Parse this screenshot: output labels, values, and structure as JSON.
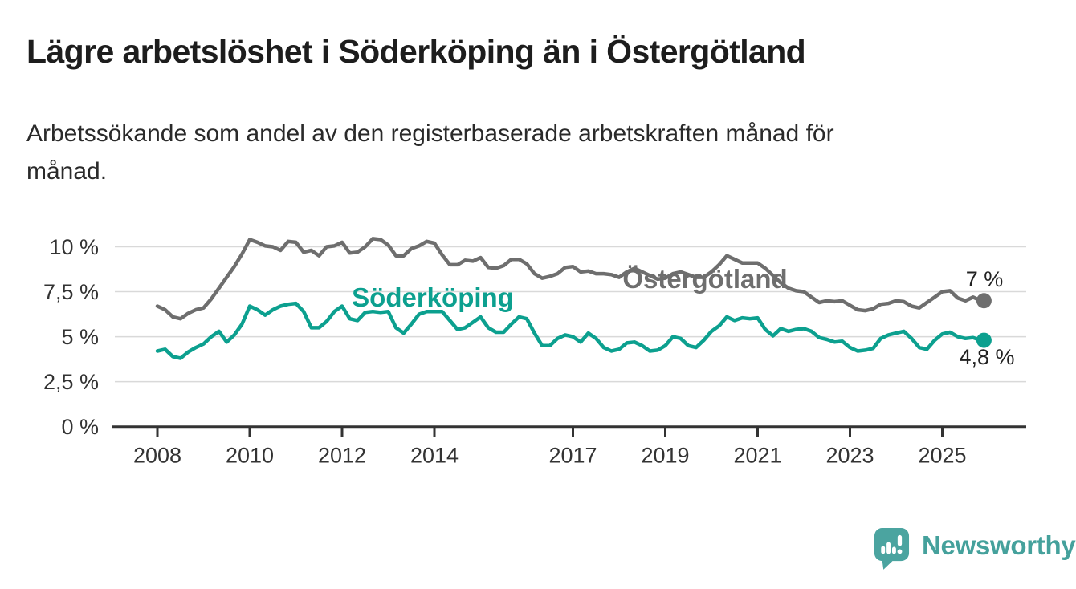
{
  "header": {
    "title": "Lägre arbetslöshet i Söderköping än i Östergötland",
    "subtitle": "Arbetssökande som andel av den registerbaserade arbetskraften månad för månad.",
    "subtitle_line1": "Arbetssökande som andel av den registerbaserade arbetskraften månad för",
    "subtitle_line2": "månad."
  },
  "chart_data": {
    "type": "line",
    "title": "",
    "xlabel": "",
    "ylabel": "",
    "grid": true,
    "legend_position": "inline-labels-on-lines",
    "x_unit": "year-month",
    "y_unit": "percent",
    "x_start": 2008.0,
    "x_step_years": 0.1666667,
    "x_end": 2025.83,
    "ylim": [
      0,
      11.7
    ],
    "xlim": [
      2007.0,
      2026.8
    ],
    "y_ticks": [
      {
        "value": 0,
        "label": "0 %"
      },
      {
        "value": 2.5,
        "label": "2,5 %"
      },
      {
        "value": 5,
        "label": "5 %"
      },
      {
        "value": 7.5,
        "label": "7,5 %"
      },
      {
        "value": 10,
        "label": "10 %"
      }
    ],
    "x_ticks": [
      {
        "value": 2008,
        "label": "2008"
      },
      {
        "value": 2010,
        "label": "2010"
      },
      {
        "value": 2012,
        "label": "2012"
      },
      {
        "value": 2014,
        "label": "2014"
      },
      {
        "value": 2017,
        "label": "2017"
      },
      {
        "value": 2019,
        "label": "2019"
      },
      {
        "value": 2021,
        "label": "2021"
      },
      {
        "value": 2023,
        "label": "2023"
      },
      {
        "value": 2025,
        "label": "2025"
      }
    ],
    "series": [
      {
        "name": "Östergötland",
        "color": "#6e6e6e",
        "end_label": "7 %",
        "end_value": 7.0,
        "values": [
          6.7,
          6.5,
          6.1,
          6.0,
          6.3,
          6.5,
          6.6,
          7.1,
          7.7,
          8.3,
          8.9,
          9.6,
          10.4,
          10.25,
          10.05,
          10.0,
          9.8,
          10.3,
          10.25,
          9.7,
          9.8,
          9.5,
          10.0,
          10.05,
          10.25,
          9.65,
          9.7,
          10.0,
          10.45,
          10.4,
          10.1,
          9.5,
          9.5,
          9.9,
          10.05,
          10.3,
          10.2,
          9.55,
          9.0,
          9.0,
          9.25,
          9.2,
          9.4,
          8.85,
          8.8,
          8.95,
          9.3,
          9.3,
          9.05,
          8.5,
          8.25,
          8.35,
          8.5,
          8.85,
          8.9,
          8.6,
          8.65,
          8.5,
          8.5,
          8.45,
          8.3,
          8.6,
          8.8,
          8.6,
          8.4,
          8.2,
          8.25,
          8.5,
          8.6,
          8.45,
          8.3,
          8.3,
          8.6,
          9.0,
          9.5,
          9.3,
          9.1,
          9.1,
          9.1,
          8.8,
          8.4,
          8.0,
          7.7,
          7.55,
          7.5,
          7.2,
          6.9,
          7.0,
          6.95,
          7.0,
          6.75,
          6.5,
          6.45,
          6.55,
          6.8,
          6.85,
          7.0,
          6.95,
          6.7,
          6.6,
          6.9,
          7.2,
          7.5,
          7.55,
          7.15,
          7.0,
          7.2,
          7.0
        ]
      },
      {
        "name": "Söderköping",
        "color": "#0ca08f",
        "end_label": "4,8 %",
        "end_value": 4.8,
        "values": [
          4.2,
          4.3,
          3.9,
          3.8,
          4.15,
          4.4,
          4.6,
          5.0,
          5.3,
          4.7,
          5.1,
          5.7,
          6.7,
          6.5,
          6.2,
          6.5,
          6.7,
          6.8,
          6.85,
          6.4,
          5.5,
          5.5,
          5.85,
          6.4,
          6.7,
          6.0,
          5.9,
          6.35,
          6.4,
          6.35,
          6.4,
          5.5,
          5.2,
          5.7,
          6.25,
          6.4,
          6.4,
          6.4,
          5.9,
          5.4,
          5.5,
          5.8,
          6.1,
          5.5,
          5.25,
          5.25,
          5.7,
          6.1,
          6.0,
          5.2,
          4.5,
          4.5,
          4.9,
          5.1,
          5.0,
          4.7,
          5.2,
          4.9,
          4.4,
          4.2,
          4.3,
          4.65,
          4.7,
          4.5,
          4.2,
          4.25,
          4.5,
          5.0,
          4.9,
          4.5,
          4.4,
          4.8,
          5.3,
          5.6,
          6.1,
          5.9,
          6.05,
          6.0,
          6.05,
          5.4,
          5.05,
          5.45,
          5.3,
          5.4,
          5.45,
          5.3,
          4.95,
          4.85,
          4.7,
          4.75,
          4.4,
          4.2,
          4.25,
          4.35,
          4.9,
          5.1,
          5.2,
          5.3,
          4.9,
          4.4,
          4.3,
          4.8,
          5.15,
          5.25,
          5.0,
          4.9,
          4.95,
          4.8
        ]
      }
    ],
    "colors": {
      "grid": "#d9d9d9",
      "axis": "#333333",
      "tick_text": "#333333",
      "annotation_text": "#222222"
    }
  },
  "branding": {
    "logo_text": "Newsworthy",
    "logo_icon": "newsworthy-bar-chart-bubble-icon",
    "logo_color": "#45a19c",
    "logo_bubble_color": "#4ba4a0"
  }
}
